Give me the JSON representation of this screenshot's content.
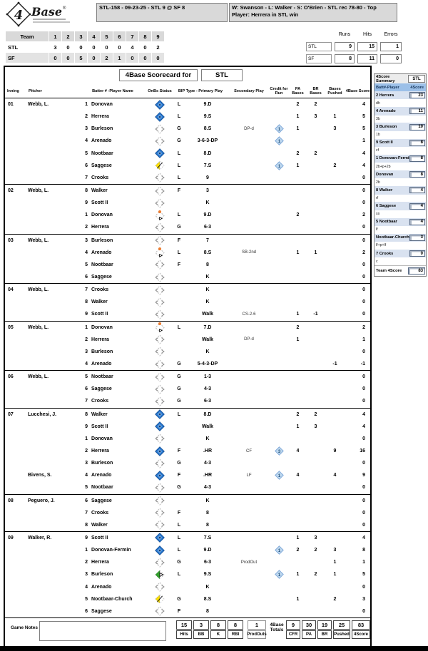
{
  "top": {
    "logo_number": "4",
    "logo_word": "Base",
    "logo_reg": "®",
    "game_box": "STL-158 - 09-23-25 - STL 9 @ SF 8",
    "result_box": "W: Swanson - L: Walker - S: O'Brien - STL rec 78-80 - Top Player: Herrera in STL win"
  },
  "linescore": {
    "header": [
      "Team",
      "1",
      "2",
      "3",
      "4",
      "5",
      "6",
      "7",
      "8",
      "9"
    ],
    "rows": [
      {
        "team": "STL",
        "values": [
          "3",
          "0",
          "0",
          "0",
          "0",
          "0",
          "4",
          "0",
          "2"
        ]
      },
      {
        "team": "SF",
        "values": [
          "0",
          "0",
          "5",
          "0",
          "2",
          "1",
          "0",
          "0",
          "0"
        ]
      }
    ]
  },
  "rhe": {
    "headers": [
      "Runs",
      "Hits",
      "Errors"
    ],
    "rows": [
      {
        "team": "STL",
        "values": [
          "9",
          "15",
          "1"
        ]
      },
      {
        "team": "SF",
        "values": [
          "8",
          "11",
          "0"
        ]
      }
    ]
  },
  "scorecard": {
    "title": "4Base Scorecard for",
    "team": "STL",
    "columns": {
      "inning": "Inning",
      "pitcher": "Pitcher",
      "batter": "Batter # -Player Name",
      "onbs": "OnBs Status",
      "bip_primary": "BIP Type - Primary Play",
      "secondary": "Secondary Play",
      "credit": "Credit for Run",
      "pa": "PA Bases",
      "br": "BR Bases",
      "pushed": "Bases Pushed",
      "score": "4Base Score"
    },
    "innings": [
      {
        "inning": "01",
        "pitcher": "Webb, L.",
        "rows": [
          {
            "num": "1",
            "name": "Donovan",
            "onbs": "scored",
            "bip": "L",
            "primary": "9.D",
            "pa": "2",
            "br": "2",
            "score": "4"
          },
          {
            "num": "2",
            "name": "Herrera",
            "onbs": "scored",
            "bip": "L",
            "primary": "9.S",
            "pa": "1",
            "br": "3",
            "pushed": "1",
            "score": "5"
          },
          {
            "num": "3",
            "name": "Burleson",
            "onbs": "out",
            "bip": "G",
            "primary": "8.S",
            "secondary": "DP-d",
            "credit": "1",
            "pa": "1",
            "pushed": "3",
            "score": "5"
          },
          {
            "num": "4",
            "name": "Arenado",
            "onbs": "out",
            "bip": "G",
            "primary": "3-6-3-DP",
            "credit": "1",
            "score": "1"
          },
          {
            "num": "5",
            "name": "Nootbaar",
            "onbs": "scored",
            "bip": "L",
            "primary": "8.D",
            "pa": "2",
            "br": "2",
            "score": "4"
          },
          {
            "num": "6",
            "name": "Saggese",
            "onbs": "half_yellow",
            "bip": "L",
            "primary": "7.S",
            "credit": "1",
            "pa": "1",
            "pushed": "2",
            "score": "4"
          },
          {
            "num": "7",
            "name": "Crooks",
            "onbs": "out",
            "bip": "L",
            "primary": "9",
            "score": "0"
          }
        ]
      },
      {
        "inning": "02",
        "pitcher": "Webb, L.",
        "rows": [
          {
            "num": "8",
            "name": "Walker",
            "onbs": "out",
            "bip": "F",
            "primary": "3",
            "score": "0"
          },
          {
            "num": "9",
            "name": "Scott II",
            "onbs": "out",
            "primary": "K",
            "score": "0"
          },
          {
            "num": "1",
            "name": "Donovan",
            "onbs": "stranded",
            "bip": "L",
            "primary": "9.D",
            "pa": "2",
            "score": "2"
          },
          {
            "num": "2",
            "name": "Herrera",
            "onbs": "out",
            "bip": "G",
            "primary": "6-3",
            "score": "0"
          }
        ]
      },
      {
        "inning": "03",
        "pitcher": "Webb, L.",
        "rows": [
          {
            "num": "3",
            "name": "Burleson",
            "onbs": "out",
            "bip": "F",
            "primary": "7",
            "score": "0"
          },
          {
            "num": "4",
            "name": "Arenado",
            "onbs": "stranded",
            "bip": "L",
            "primary": "8.S",
            "secondary": "SB-2nd",
            "pa": "1",
            "br": "1",
            "score": "2"
          },
          {
            "num": "5",
            "name": "Nootbaar",
            "onbs": "out",
            "bip": "F",
            "primary": "8",
            "score": "0"
          },
          {
            "num": "6",
            "name": "Saggese",
            "onbs": "out",
            "primary": "K",
            "score": "0"
          }
        ]
      },
      {
        "inning": "04",
        "pitcher": "Webb, L.",
        "rows": [
          {
            "num": "7",
            "name": "Crooks",
            "onbs": "out",
            "primary": "K",
            "score": "0"
          },
          {
            "num": "8",
            "name": "Walker",
            "onbs": "out",
            "primary": "K",
            "score": "0"
          },
          {
            "num": "9",
            "name": "Scott II",
            "onbs": "out",
            "primary": "Walk",
            "secondary": "CS-2-6",
            "pa": "1",
            "br": "-1",
            "score": "0"
          }
        ]
      },
      {
        "inning": "05",
        "pitcher": "Webb, L.",
        "rows": [
          {
            "num": "1",
            "name": "Donovan",
            "onbs": "stranded",
            "bip": "L",
            "primary": "7.D",
            "pa": "2",
            "score": "2"
          },
          {
            "num": "2",
            "name": "Herrera",
            "onbs": "out",
            "primary": "Walk",
            "secondary": "DP-d",
            "pa": "1",
            "score": "1"
          },
          {
            "num": "3",
            "name": "Burleson",
            "onbs": "out",
            "primary": "K",
            "score": "0"
          },
          {
            "num": "4",
            "name": "Arenado",
            "onbs": "out",
            "bip": "G",
            "primary": "5-4-3-DP",
            "pushed": "-1",
            "score": "-1"
          }
        ]
      },
      {
        "inning": "06",
        "pitcher": "Webb, L.",
        "rows": [
          {
            "num": "5",
            "name": "Nootbaar",
            "onbs": "out",
            "bip": "G",
            "primary": "1-3",
            "score": "0"
          },
          {
            "num": "6",
            "name": "Saggese",
            "onbs": "out",
            "bip": "G",
            "primary": "4-3",
            "score": "0"
          },
          {
            "num": "7",
            "name": "Crooks",
            "onbs": "out",
            "bip": "G",
            "primary": "6-3",
            "score": "0"
          }
        ]
      },
      {
        "inning": "07",
        "pitcher": "Lucchesi, J.",
        "rows": [
          {
            "num": "8",
            "name": "Walker",
            "onbs": "scored",
            "bip": "L",
            "primary": "8.D",
            "pa": "2",
            "br": "2",
            "score": "4"
          },
          {
            "num": "9",
            "name": "Scott II",
            "onbs": "scored",
            "primary": "Walk",
            "pa": "1",
            "br": "3",
            "score": "4"
          },
          {
            "num": "1",
            "name": "Donovan",
            "onbs": "out",
            "primary": "K",
            "score": "0"
          },
          {
            "num": "2",
            "name": "Herrera",
            "onbs": "scored",
            "bip": "F",
            "primary": ".HR",
            "secondary": "CF",
            "credit": "3",
            "pa": "4",
            "pushed": "9",
            "score": "16"
          },
          {
            "num": "3",
            "name": "Burleson",
            "onbs": "out",
            "bip": "G",
            "primary": "4-3",
            "score": "0"
          },
          {
            "pitcher": "Bivens, S.",
            "num": "4",
            "name": "Arenado",
            "onbs": "scored",
            "bip": "F",
            "primary": ".HR",
            "secondary": "LF",
            "credit": "1",
            "pa": "4",
            "pushed": "4",
            "score": "9"
          },
          {
            "num": "5",
            "name": "Nootbaar",
            "onbs": "out",
            "bip": "G",
            "primary": "4-3",
            "score": "0"
          }
        ]
      },
      {
        "inning": "08",
        "pitcher": "Peguero, J.",
        "rows": [
          {
            "num": "6",
            "name": "Saggese",
            "onbs": "out",
            "primary": "K",
            "score": "0"
          },
          {
            "num": "7",
            "name": "Crooks",
            "onbs": "out",
            "bip": "F",
            "primary": "8",
            "score": "0"
          },
          {
            "num": "8",
            "name": "Walker",
            "onbs": "out",
            "bip": "L",
            "primary": "8",
            "score": "0"
          }
        ]
      },
      {
        "inning": "09",
        "pitcher": "Walker, R.",
        "rows": [
          {
            "num": "9",
            "name": "Scott II",
            "onbs": "scored",
            "bip": "L",
            "primary": "7.S",
            "pa": "1",
            "br": "3",
            "score": "4"
          },
          {
            "num": "1",
            "name": "Donovan-Fermin",
            "onbs": "scored",
            "bip": "L",
            "primary": "9.D",
            "credit": "1",
            "pa": "2",
            "br": "2",
            "pushed": "3",
            "score": "8"
          },
          {
            "num": "2",
            "name": "Herrera",
            "onbs": "out",
            "bip": "G",
            "primary": "6-3",
            "secondary": "ProdOut",
            "pushed": "1",
            "score": "1"
          },
          {
            "num": "3",
            "name": "Burleson",
            "onbs": "half_green",
            "bip": "L",
            "primary": "9.S",
            "credit": "1",
            "pa": "1",
            "br": "2",
            "pushed": "1",
            "score": "5"
          },
          {
            "num": "4",
            "name": "Arenado",
            "onbs": "out",
            "primary": "K",
            "score": "0"
          },
          {
            "num": "5",
            "name": "Nootbaar-Church",
            "onbs": "half_yellow",
            "bip": "G",
            "primary": "8.S",
            "pa": "1",
            "pushed": "2",
            "score": "3"
          },
          {
            "num": "6",
            "name": "Saggese",
            "onbs": "out",
            "bip": "F",
            "primary": "8",
            "score": "0"
          }
        ]
      }
    ]
  },
  "footer": {
    "game_notes_label": "Game Notes",
    "stat_boxes": [
      {
        "value": "15",
        "label": "Hits"
      },
      {
        "value": "3",
        "label": "BB"
      },
      {
        "value": "8",
        "label": "K"
      },
      {
        "value": "8",
        "label": "RBI"
      }
    ],
    "prodouts": {
      "value": "1",
      "label": "ProdOuts"
    },
    "totals_label": "4Base Totals",
    "total_boxes": [
      {
        "value": "9",
        "label": "CFR"
      },
      {
        "value": "30",
        "label": "PA"
      },
      {
        "value": "19",
        "label": "BR"
      },
      {
        "value": "25",
        "label": "Pushed"
      },
      {
        "value": "83",
        "label": "4Score"
      }
    ]
  },
  "sidebar": {
    "title": "4Score Summary",
    "team": "STL",
    "header_player": "Batt#-Player",
    "header_score": "4Score",
    "rows": [
      {
        "label": "2 Herrera",
        "pos": "dh",
        "score": "23"
      },
      {
        "label": "4 Arenado",
        "pos": "3b",
        "score": "11"
      },
      {
        "label": "3 Burleson",
        "pos": "1b",
        "score": "10"
      },
      {
        "label": "9 Scott II",
        "pos": "cf",
        "score": "8"
      },
      {
        "label": "1 Donovan-Fermin",
        "pos": "2b+p+2b",
        "score": "8"
      },
      {
        "label": "Donovan",
        "pos": "2b",
        "score": "8"
      },
      {
        "label": "8 Walker",
        "pos": "rf",
        "score": "4"
      },
      {
        "label": "6 Saggese",
        "pos": "ss",
        "score": "4"
      },
      {
        "label": "5 Nootbaar",
        "pos": "lf",
        "score": "4"
      },
      {
        "label": "Nootbaar-Church",
        "pos": "lf+p+lf",
        "score": "3"
      },
      {
        "label": "7 Crooks",
        "pos": "c",
        "score": "0"
      }
    ],
    "team_total_label": "Team 4Score",
    "team_total": "83"
  },
  "icons": {
    "scored": "blue-diamond-scored-icon",
    "out": "dashed-diamond-out-icon",
    "stranded": "dashed-diamond-orange-runner-icon",
    "half_yellow": "yellow-half-diamond-icon",
    "half_green": "green-half-diamond-icon",
    "credit": "credit-for-run-diamond-icon"
  },
  "colors": {
    "scored_blue": "#2a7ad2",
    "scored_blue_dark": "#123f7a",
    "credit_fill": "#bdd7ee",
    "credit_border": "#7da7d8",
    "half_yellow": "#ffe000",
    "half_green": "#33a02c",
    "stranded_orange": "#ed7d31",
    "header_gray": "#d9d9d9",
    "sidebar_header_blue": "#9cc0e8",
    "sidebar_row_blue": "#d9e2f0"
  }
}
